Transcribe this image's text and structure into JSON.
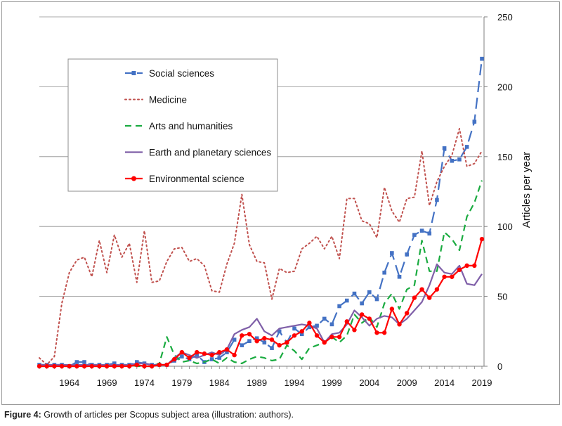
{
  "caption": {
    "label": "Figure 4:",
    "text": " Growth of articles per Scopus subject area (illustration: authors)."
  },
  "chart_data": {
    "type": "line",
    "title": "",
    "xlabel": "",
    "ylabel": "Articles per year",
    "ylim": [
      0,
      250
    ],
    "xlim": [
      1960,
      2019
    ],
    "yticks": [
      0,
      50,
      100,
      150,
      200,
      250
    ],
    "xticks": [
      1964,
      1969,
      1974,
      1979,
      1984,
      1989,
      1994,
      1999,
      2004,
      2009,
      2014,
      2019
    ],
    "y_axis_side": "right",
    "grid": "horizontal",
    "legend_position": "upper-left",
    "series": [
      {
        "name": "Social sciences",
        "color": "#4472C4",
        "style": "long-dash",
        "marker": "square",
        "x": [
          1960,
          1961,
          1962,
          1963,
          1964,
          1965,
          1966,
          1967,
          1968,
          1969,
          1970,
          1971,
          1972,
          1973,
          1974,
          1975,
          1976,
          1977,
          1978,
          1979,
          1980,
          1981,
          1982,
          1983,
          1984,
          1985,
          1986,
          1987,
          1988,
          1989,
          1990,
          1991,
          1992,
          1993,
          1994,
          1995,
          1996,
          1997,
          1998,
          1999,
          2000,
          2001,
          2002,
          2003,
          2004,
          2005,
          2006,
          2007,
          2008,
          2009,
          2010,
          2011,
          2012,
          2013,
          2014,
          2015,
          2016,
          2017,
          2018,
          2019
        ],
        "y": [
          1,
          1,
          1,
          1,
          0,
          3,
          3,
          1,
          1,
          1,
          2,
          1,
          1,
          3,
          2,
          1,
          1,
          1,
          4,
          7,
          5,
          8,
          3,
          5,
          6,
          10,
          19,
          15,
          18,
          20,
          17,
          13,
          25,
          17,
          27,
          23,
          28,
          29,
          34,
          30,
          43,
          47,
          52,
          45,
          53,
          48,
          67,
          81,
          64,
          80,
          94,
          97,
          95,
          119,
          156,
          147,
          148,
          157,
          175,
          220
        ]
      },
      {
        "name": "Medicine",
        "color": "#C0504D",
        "style": "dotted",
        "marker": "none",
        "x": [
          1960,
          1961,
          1962,
          1963,
          1964,
          1965,
          1966,
          1967,
          1968,
          1969,
          1970,
          1971,
          1972,
          1973,
          1974,
          1975,
          1976,
          1977,
          1978,
          1979,
          1980,
          1981,
          1982,
          1983,
          1984,
          1985,
          1986,
          1987,
          1988,
          1989,
          1990,
          1991,
          1992,
          1993,
          1994,
          1995,
          1996,
          1997,
          1998,
          1999,
          2000,
          2001,
          2002,
          2003,
          2004,
          2005,
          2006,
          2007,
          2008,
          2009,
          2010,
          2011,
          2012,
          2013,
          2014,
          2015,
          2016,
          2017,
          2018,
          2019
        ],
        "y": [
          6,
          1,
          7,
          45,
          67,
          76,
          78,
          64,
          90,
          67,
          94,
          78,
          88,
          60,
          97,
          60,
          61,
          75,
          84,
          85,
          75,
          77,
          72,
          54,
          53,
          73,
          88,
          123,
          87,
          75,
          74,
          48,
          70,
          67,
          68,
          84,
          88,
          93,
          84,
          93,
          77,
          120,
          120,
          104,
          102,
          92,
          128,
          111,
          103,
          120,
          121,
          154,
          115,
          132,
          143,
          151,
          170,
          143,
          145,
          154
        ]
      },
      {
        "name": "Arts and humanities",
        "color": "#1AAB40",
        "style": "dash",
        "marker": "none",
        "x": [
          1960,
          1961,
          1962,
          1963,
          1964,
          1965,
          1966,
          1967,
          1968,
          1969,
          1970,
          1971,
          1972,
          1973,
          1974,
          1975,
          1976,
          1977,
          1978,
          1979,
          1980,
          1981,
          1982,
          1983,
          1984,
          1985,
          1986,
          1987,
          1988,
          1989,
          1990,
          1991,
          1992,
          1993,
          1994,
          1995,
          1996,
          1997,
          1998,
          1999,
          2000,
          2001,
          2002,
          2003,
          2004,
          2005,
          2006,
          2007,
          2008,
          2009,
          2010,
          2011,
          2012,
          2013,
          2014,
          2015,
          2016,
          2017,
          2018,
          2019
        ],
        "y": [
          0,
          0,
          0,
          0,
          0,
          0,
          0,
          0,
          0,
          0,
          0,
          0,
          1,
          0,
          0,
          0,
          2,
          21,
          8,
          3,
          4,
          2,
          3,
          5,
          2,
          6,
          3,
          2,
          5,
          7,
          6,
          4,
          5,
          15,
          11,
          5,
          13,
          15,
          17,
          21,
          17,
          22,
          37,
          31,
          35,
          28,
          45,
          52,
          41,
          55,
          58,
          90,
          68,
          68,
          96,
          91,
          83,
          107,
          117,
          133
        ]
      },
      {
        "name": "Earth and planetary sciences",
        "color": "#7F5FA8",
        "style": "solid",
        "marker": "none",
        "x": [
          1960,
          1961,
          1962,
          1963,
          1964,
          1965,
          1966,
          1967,
          1968,
          1969,
          1970,
          1971,
          1972,
          1973,
          1974,
          1975,
          1976,
          1977,
          1978,
          1979,
          1980,
          1981,
          1982,
          1983,
          1984,
          1985,
          1986,
          1987,
          1988,
          1989,
          1990,
          1991,
          1992,
          1993,
          1994,
          1995,
          1996,
          1997,
          1998,
          1999,
          2000,
          2001,
          2002,
          2003,
          2004,
          2005,
          2006,
          2007,
          2008,
          2009,
          2010,
          2011,
          2012,
          2013,
          2014,
          2015,
          2016,
          2017,
          2018,
          2019
        ],
        "y": [
          1,
          1,
          1,
          1,
          1,
          1,
          1,
          1,
          1,
          1,
          1,
          1,
          1,
          2,
          2,
          1,
          1,
          1,
          6,
          10,
          8,
          6,
          8,
          10,
          8,
          12,
          23,
          26,
          28,
          34,
          25,
          22,
          27,
          28,
          29,
          30,
          29,
          27,
          17,
          23,
          24,
          30,
          40,
          35,
          29,
          34,
          36,
          35,
          30,
          34,
          40,
          46,
          58,
          73,
          67,
          66,
          72,
          59,
          58,
          66
        ]
      },
      {
        "name": "Environmental science",
        "color": "#FF0000",
        "style": "solid",
        "marker": "circle",
        "x": [
          1960,
          1961,
          1962,
          1963,
          1964,
          1965,
          1966,
          1967,
          1968,
          1969,
          1970,
          1971,
          1972,
          1973,
          1974,
          1975,
          1976,
          1977,
          1978,
          1979,
          1980,
          1981,
          1982,
          1983,
          1984,
          1985,
          1986,
          1987,
          1988,
          1989,
          1990,
          1991,
          1992,
          1993,
          1994,
          1995,
          1996,
          1997,
          1998,
          1999,
          2000,
          2001,
          2002,
          2003,
          2004,
          2005,
          2006,
          2007,
          2008,
          2009,
          2010,
          2011,
          2012,
          2013,
          2014,
          2015,
          2016,
          2017,
          2018,
          2019
        ],
        "y": [
          0,
          0,
          0,
          0,
          0,
          0,
          0,
          0,
          0,
          0,
          0,
          0,
          0,
          1,
          0,
          0,
          1,
          1,
          5,
          10,
          6,
          10,
          9,
          8,
          10,
          12,
          8,
          22,
          23,
          18,
          20,
          19,
          15,
          17,
          22,
          25,
          31,
          22,
          17,
          21,
          21,
          32,
          26,
          37,
          34,
          24,
          24,
          41,
          30,
          38,
          49,
          55,
          49,
          55,
          64,
          64,
          69,
          72,
          72,
          91
        ]
      }
    ]
  }
}
